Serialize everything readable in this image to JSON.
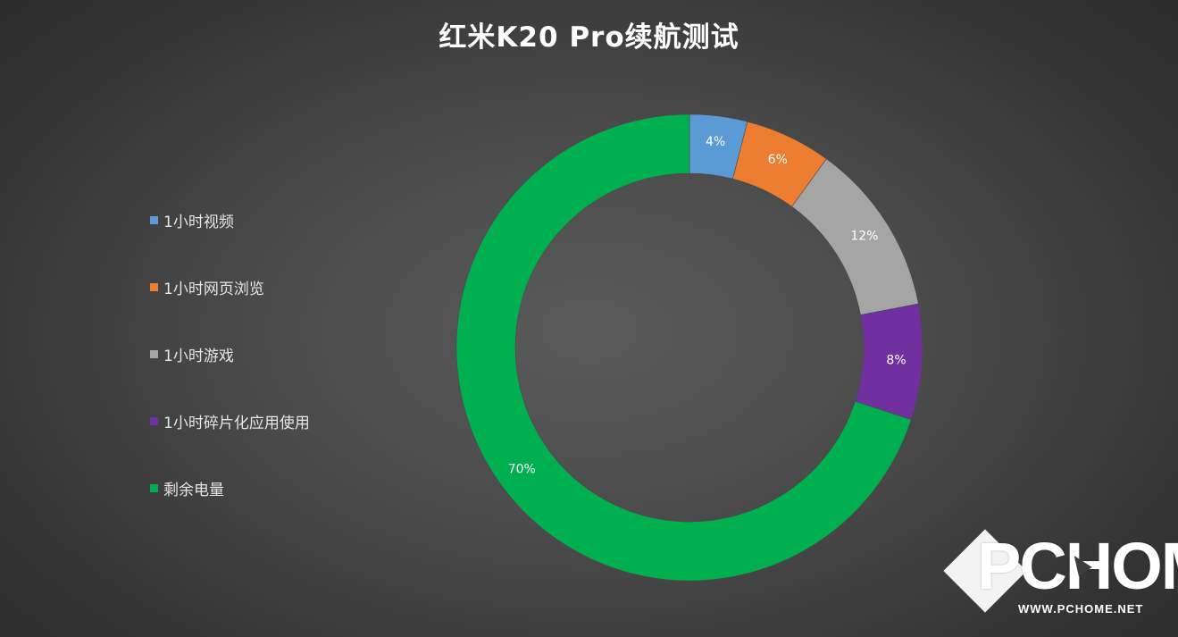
{
  "chart_data": {
    "type": "pie",
    "variant": "donut",
    "title": "红米K20 Pro续航测试",
    "categories": [
      "1小时视频",
      "1小时网页浏览",
      "1小时游戏",
      "1小时碎片化应用使用",
      "剩余电量"
    ],
    "values": [
      4,
      6,
      12,
      8,
      70
    ],
    "value_labels": [
      "4%",
      "6%",
      "12%",
      "8%",
      "70%"
    ],
    "colors": [
      "#5b9bd5",
      "#ed7d31",
      "#a5a5a5",
      "#7030a0",
      "#00b050"
    ],
    "label_colors": [
      "#ffffff",
      "#ffffff",
      "#ffffff",
      "#ffffff",
      "#ffffff"
    ],
    "legend_position": "left",
    "start_angle_deg": 0,
    "direction": "clockwise"
  },
  "watermark": {
    "logo": "PCHOME",
    "url": "WWW.PCHOME.NET"
  }
}
